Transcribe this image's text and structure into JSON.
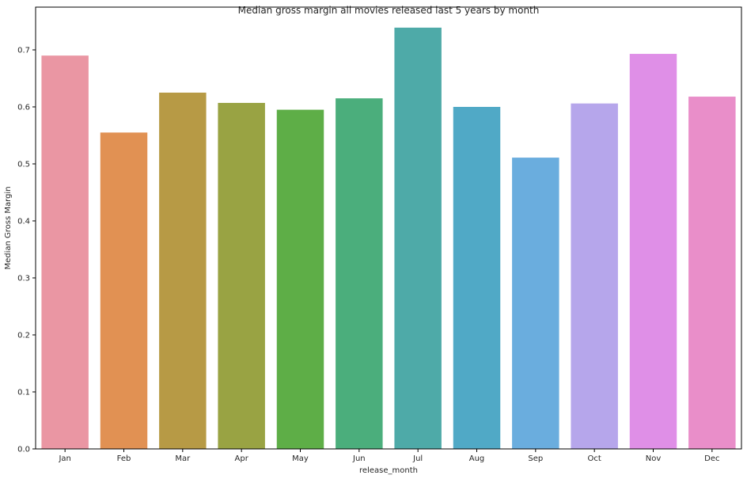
{
  "chart_data": {
    "type": "bar",
    "title": "Median gross margin all movies released last 5 years by month",
    "xlabel": "release_month",
    "ylabel": "Median Gross Margin",
    "categories": [
      "Jan",
      "Feb",
      "Mar",
      "Apr",
      "May",
      "Jun",
      "Jul",
      "Aug",
      "Sep",
      "Oct",
      "Nov",
      "Dec"
    ],
    "values": [
      0.69,
      0.555,
      0.625,
      0.607,
      0.595,
      0.615,
      0.739,
      0.6,
      0.511,
      0.606,
      0.693,
      0.618
    ],
    "colors": [
      "#ea96a3",
      "#e19153",
      "#b79a45",
      "#99a343",
      "#5eae47",
      "#4bae7c",
      "#4eaaa8",
      "#50a9c6",
      "#6aadde",
      "#b6a6eb",
      "#df8fe7",
      "#e98ec9"
    ],
    "yticks": [
      "0.0",
      "0.1",
      "0.2",
      "0.3",
      "0.4",
      "0.5",
      "0.6",
      "0.7"
    ],
    "ylim": [
      0,
      0.775
    ],
    "grid": false,
    "legend": "none"
  }
}
